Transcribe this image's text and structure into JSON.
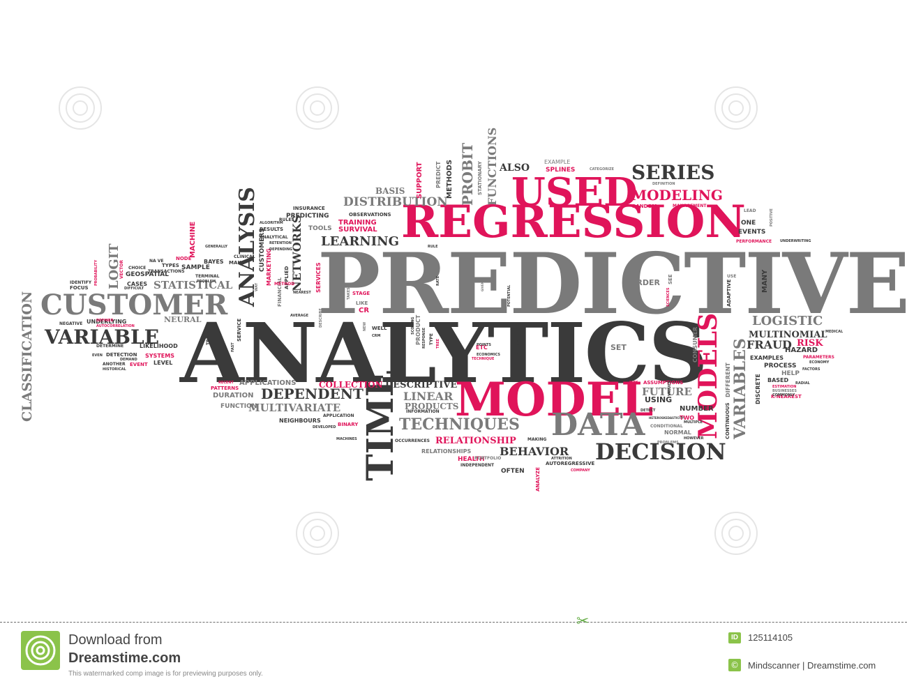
{
  "colors": {
    "dark": "#3a3a3a",
    "grey": "#7a7a7a",
    "red": "#e0145a",
    "accent_green": "#8bc34a"
  },
  "words": {
    "predictive": "PREDICTIVE",
    "analytics": "ANALYTICS",
    "regression": "REGRESSION",
    "used": "USED",
    "model": "MODEL",
    "data": "DATA",
    "customer": "CUSTOMER",
    "variable": "VARIABLE",
    "decision": "DECISION",
    "time": "TIME",
    "models": "MODELS",
    "series": "SERIES",
    "modeling": "MODELING",
    "techniques": "TECHNIQUES",
    "dependent": "DEPENDENT",
    "analysis": "ANALYSIS",
    "classification": "CLASSIFICATION",
    "distribution": "DISTRIBUTION",
    "learning": "LEARNING",
    "logistic": "LOGISTIC",
    "multinomial": "MULTINOMIAL",
    "fraud": "FRAUD",
    "risk": "RISK",
    "behavior": "BEHAVIOR",
    "multivariate": "MULTIVARIATE",
    "descriptive": "DESCRIPTIVE",
    "collection": "COLLECTION",
    "linear": "LINEAR",
    "products": "PRODUCTS",
    "relationship": "RELATIONSHIP",
    "variables": "VARIABLES",
    "networks": "NETWORKS",
    "statistical": "STATISTICAL",
    "logit": "LOGIT",
    "also": "ALSO",
    "splines": "SPLINES",
    "example": "EXAMPLE",
    "basis": "BASIS",
    "probit": "PROBIT",
    "functions": "FUNCTIONS",
    "methods": "METHODS",
    "support": "SUPPORT",
    "training": "TRAINING",
    "survival": "SURVIVAL",
    "tools": "TOOLS",
    "order": "ORDER",
    "future": "FUTURE",
    "using": "USING",
    "number": "NUMBER",
    "set": "SET",
    "applications": "APPLICATIONS",
    "duration": "DURATION",
    "function": "FUNCTION",
    "neighbours": "NEIGHBOURS",
    "health": "HEALTH",
    "often": "OFTEN",
    "normal": "NORMAL",
    "events": "EVENTS",
    "process": "PROCESS",
    "examples": "EXAMPLES",
    "hazard": "HAZARD",
    "based": "BASED",
    "help": "HELP",
    "discrete": "DISCRETE",
    "continuous": "CONTINUOUS",
    "neural": "NEURAL",
    "likelihood": "LIKELIHOOD",
    "systems": "SYSTEMS",
    "level": "LEVEL",
    "event": "EVENT",
    "geospatial": "GEOSPATIAL",
    "sample": "SAMPLE",
    "bayes": "BAYES",
    "types": "TYPES",
    "machine": "MACHINE",
    "customers": "CUSTOMERS",
    "marketing": "MARKETING",
    "services": "SERVICES",
    "insurance": "INSURANCE",
    "predicting": "PREDICTING",
    "results": "RESULTS",
    "stage": "STAGE",
    "cr": "CR",
    "like": "LIKE",
    "etc": "ETC",
    "techniques2": "TECHNIQUE",
    "two": "TWO",
    "assumptions": "ASSUMPTIONS",
    "k_nearest": "K-NEAREST",
    "parameters": "PARAMETERS",
    "performance": "PERFORMANCE",
    "random": "RANDOM",
    "management": "MANAGEMENT",
    "adaptive": "ADAPTIVE",
    "many": "MANY",
    "one": "ONE",
    "lead": "LEAD",
    "patterns": "PATTERNS",
    "binary": "BINARY",
    "analyze": "ANALYZE",
    "autoregressive": "AUTOREGRESSIVE",
    "independent": "INDEPENDENT",
    "relationships": "RELATIONSHIPS",
    "portfolio": "PORTFOLIO",
    "occurrences": "OCCURRENCES",
    "making": "MAKING",
    "consumer": "CONSUMER",
    "different": "DIFFERENT",
    "observations": "OBSERVATIONS",
    "predict": "PREDICT",
    "stationary": "STATIONARY",
    "underlying": "UNDERLYING",
    "determine": "DETERMINE",
    "detection": "DETECTION",
    "focus": "FOCUS",
    "identify": "IDENTIFY",
    "cases": "CASES",
    "choice": "CHOICE",
    "node": "NODE",
    "vector": "VECTOR",
    "financial": "FINANCIAL",
    "applied": "APPLIED",
    "well": "WELL",
    "new": "NEW",
    "conditional": "CONDITIONAL",
    "problems": "PROBLEMS",
    "however": "HOWEVER",
    "company": "COMPANY",
    "factors": "FACTORS",
    "estimation": "ESTIMATION",
    "businesses": "BUSINESSES",
    "commonly": "COMMONLY",
    "economy": "ECONOMY",
    "medical": "MEDICAL",
    "radial": "RADIAL",
    "definition": "DEFINITION",
    "categorize": "CATEGORIZE",
    "underwriting": "UNDERWRITING",
    "positive": "POSITIVE",
    "potential": "POTENTIAL",
    "information": "INFORMATION",
    "application": "APPLICATION",
    "machines": "MACHINES",
    "attrition": "ATTRITION",
    "may": "MAY",
    "values": "VALUES",
    "multiple": "MULTIPLE",
    "sciences": "SCIENCES",
    "see": "SEE",
    "use": "USE",
    "rule": "RULE",
    "trees": "TREES",
    "clinical": "CLINICAL",
    "make": "MAKE",
    "rules": "RULES",
    "terminal": "TERMINAL",
    "algorithm": "ALGORITHM",
    "another": "ANOTHER",
    "even": "EVEN",
    "negative": "NEGATIVE",
    "way": "WAY",
    "fast": "FAST",
    "service": "SERVICE",
    "average": "AVERAGE",
    "crm": "CRM",
    "scoring": "SCORING",
    "product": "PRODUCT",
    "response": "RESPONSE",
    "type": "TYPE",
    "tree": "TREE",
    "economics": "ECONOMICS",
    "proper": "PROPER",
    "detect": "DETECT",
    "given": "GIVEN",
    "rate": "RATE",
    "recent": "RECENT",
    "developed": "DEVELOPED",
    "historical": "HISTORICAL",
    "demand": "DEMAND",
    "difficult": "DIFFICULT",
    "probability": "PROBABILITY",
    "na_ve": "NA VE",
    "transactions": "TRANSACTIONS",
    "generally": "GENERALLY",
    "problem": "PROBLEM",
    "retention": "RETENTION",
    "defined": "DEFINED",
    "autocorrelation": "AUTOCORRELATION",
    "analytical": "ANALYTICAL",
    "depending": "DEPENDING",
    "method": "METHOD",
    "nearest": "NEAREST",
    "points": "POINTS",
    "takes": "TAKES",
    "describe": "DESCRIBE",
    "heteroskedasticity": "HETEROSKEDASTICITY"
  },
  "footer": {
    "download_from": "Download from",
    "site": "Dreamstime.com",
    "note": "This watermarked comp image is for previewing purposes only.",
    "id_label": "ID",
    "id_value": "125114105",
    "copyright_symbol": "©",
    "credit": "Mindscanner | Dreamstime.com"
  }
}
